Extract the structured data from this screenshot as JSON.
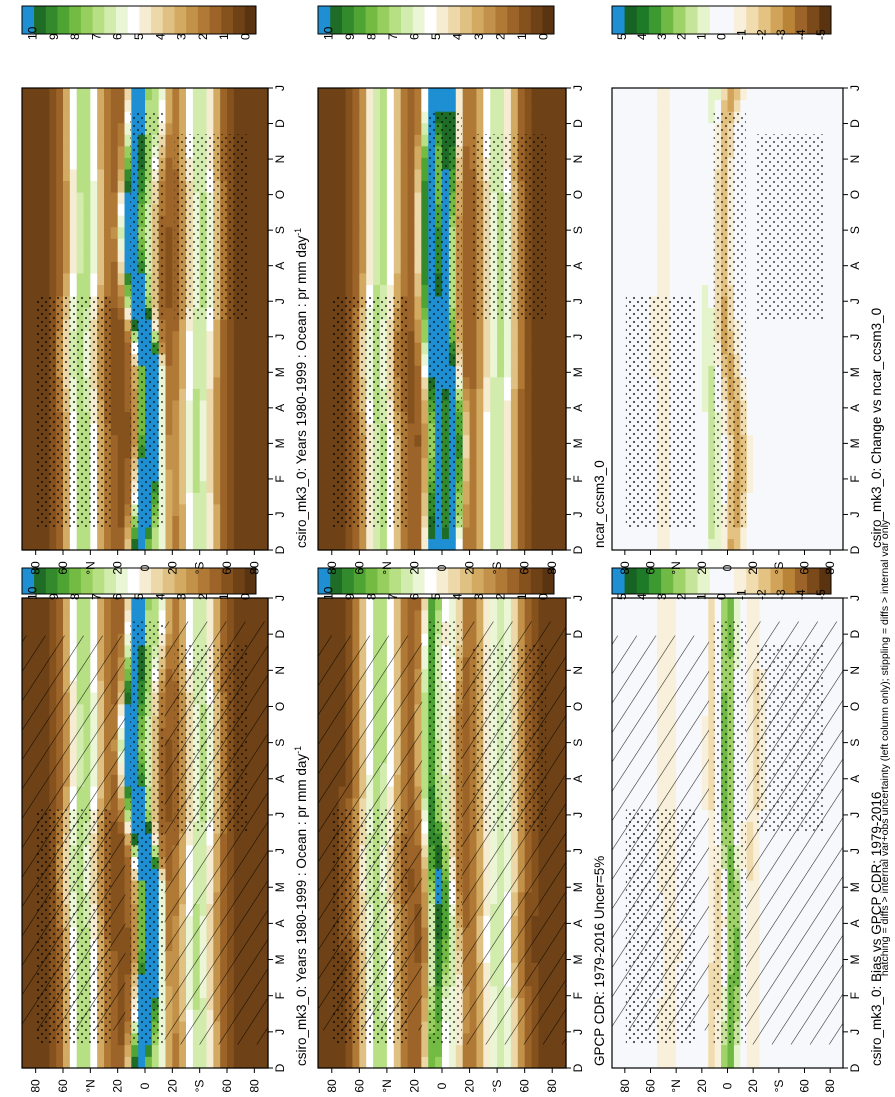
{
  "figure": {
    "footnote": "hatching = diffs > internal var+obs uncertainty (left column only); stippling = diffs > internal var only"
  },
  "palettes": {
    "abs": [
      "#5a3410",
      "#6e4216",
      "#85521e",
      "#9c6428",
      "#b07a36",
      "#c3924a",
      "#d3aa62",
      "#e0c184",
      "#ecd8a8",
      "#f6ecd2",
      "#ffffff",
      "#eaf6d5",
      "#d2ecae",
      "#b7df84",
      "#97cf5e",
      "#73bb42",
      "#4ea534",
      "#328a2c",
      "#1f6c26",
      "#1e8fd2"
    ],
    "diff": [
      "#5a3410",
      "#7a4a1a",
      "#9c6428",
      "#b98438",
      "#d1a45a",
      "#e3c282",
      "#f0dcae",
      "#f8f0da",
      "#f7f8fc",
      "#f7f8fc",
      "#e6f4cc",
      "#c6e59a",
      "#9fd268",
      "#6fb944",
      "#3d9a30",
      "#1f7a28",
      "#176324",
      "#1e8fd2"
    ]
  },
  "chart_data": [
    {
      "id": "p1",
      "type": "heatmap",
      "title": "csiro_mk3_0: Years 1980-1999 : Ocean : pr mm day",
      "title_sup": "-1",
      "x_ticks": [
        "D",
        "J",
        "F",
        "M",
        "A",
        "M",
        "J",
        "J",
        "A",
        "S",
        "O",
        "N",
        "D",
        "J"
      ],
      "y_ticks": [
        "80",
        "60",
        "°N",
        "20",
        "0",
        "20",
        "°S",
        "60",
        "80"
      ],
      "y_range": [
        -90,
        90
      ],
      "colorbar_labels": [
        "10",
        "9",
        "8",
        "7",
        "6",
        "5",
        "4",
        "3",
        "2",
        "1",
        "0"
      ],
      "palette": "abs",
      "overlay": "hatch+stipple",
      "z_range": [
        0,
        10
      ],
      "fields": [
        {
          "lat_c": [
            5,
            2,
            0,
            -3,
            -5,
            -6,
            0,
            7,
            10,
            12,
            10,
            8,
            6,
            5
          ],
          "width": 5,
          "amp": 9.2
        },
        {
          "lat_c": [
            -9,
            -9,
            -8,
            -6,
            -3,
            -1,
            0,
            0,
            0,
            0,
            -1,
            -4,
            -8,
            -9
          ],
          "width": 6,
          "amp": 5.0
        },
        {
          "lat_c": [
            -40,
            -40,
            -38,
            -38,
            -38,
            -40,
            -40,
            -42,
            -42,
            -42,
            -42,
            -40,
            -40,
            -40
          ],
          "width": 9,
          "amp": 5.4
        },
        {
          "lat_c": [
            45,
            45,
            45,
            45,
            46,
            48,
            48,
            46,
            44,
            44,
            44,
            45,
            45,
            45
          ],
          "width": 9,
          "amp": 5.8
        }
      ]
    },
    {
      "id": "p2",
      "type": "heatmap",
      "title": "csiro_mk3_0: Years 1980-1999 : Ocean : pr mm day",
      "title_sup": "-1",
      "x_ticks": [
        "D",
        "J",
        "F",
        "M",
        "A",
        "M",
        "J",
        "J",
        "A",
        "S",
        "O",
        "N",
        "D",
        "J"
      ],
      "y_ticks": [
        "80",
        "60",
        "°N",
        "20",
        "0",
        "20",
        "°S",
        "60",
        "80"
      ],
      "y_range": [
        -90,
        90
      ],
      "colorbar_labels": [
        "10",
        "9",
        "8",
        "7",
        "6",
        "5",
        "4",
        "3",
        "2",
        "1",
        "0"
      ],
      "palette": "abs",
      "overlay": "stipple",
      "z_range": [
        0,
        10
      ],
      "fields": [
        {
          "lat_c": [
            5,
            2,
            0,
            -3,
            -5,
            -6,
            0,
            7,
            10,
            12,
            10,
            8,
            6,
            5
          ],
          "width": 5,
          "amp": 9.2
        },
        {
          "lat_c": [
            -9,
            -9,
            -8,
            -6,
            -3,
            -1,
            0,
            0,
            0,
            0,
            -1,
            -4,
            -8,
            -9
          ],
          "width": 6,
          "amp": 5.0
        },
        {
          "lat_c": [
            -40,
            -40,
            -38,
            -38,
            -38,
            -40,
            -40,
            -42,
            -42,
            -42,
            -42,
            -40,
            -40,
            -40
          ],
          "width": 9,
          "amp": 5.4
        },
        {
          "lat_c": [
            45,
            45,
            45,
            45,
            46,
            48,
            48,
            46,
            44,
            44,
            44,
            45,
            45,
            45
          ],
          "width": 9,
          "amp": 5.8
        }
      ]
    },
    {
      "id": "p3",
      "type": "heatmap",
      "title": "GPCP CDR: 1979-2016 Uncer=5%",
      "title_sup": "",
      "x_ticks": [
        "D",
        "J",
        "F",
        "M",
        "A",
        "M",
        "J",
        "J",
        "A",
        "S",
        "O",
        "N",
        "D",
        "J"
      ],
      "y_ticks": [
        "80",
        "60",
        "°N",
        "20",
        "0",
        "20",
        "°S",
        "60",
        "80"
      ],
      "y_range": [
        -90,
        90
      ],
      "colorbar_labels": [
        "10",
        "9",
        "8",
        "7",
        "6",
        "5",
        "4",
        "3",
        "2",
        "1",
        "0"
      ],
      "palette": "abs",
      "overlay": "hatch+stipple",
      "z_range": [
        0,
        10
      ],
      "fields": [
        {
          "lat_c": [
            6,
            5,
            4,
            3,
            3,
            4,
            6,
            8,
            9,
            9,
            9,
            8,
            7,
            6
          ],
          "width": 5,
          "amp": 7.0
        },
        {
          "lat_c": [
            -8,
            -9,
            -9,
            -8,
            -6,
            -4,
            -3,
            -3,
            -3,
            -3,
            -4,
            -6,
            -8,
            -8
          ],
          "width": 5,
          "amp": 4.2
        },
        {
          "lat_c": [
            -42,
            -42,
            -42,
            -40,
            -40,
            -42,
            -42,
            -42,
            -42,
            -42,
            -42,
            -42,
            -42,
            -42
          ],
          "width": 10,
          "amp": 5.2
        },
        {
          "lat_c": [
            45,
            45,
            46,
            46,
            47,
            48,
            48,
            47,
            46,
            45,
            45,
            45,
            45,
            45
          ],
          "width": 10,
          "amp": 5.6
        }
      ]
    },
    {
      "id": "p4",
      "type": "heatmap",
      "title": "ncar_ccsm3_0",
      "title_sup": "",
      "x_ticks": [
        "D",
        "J",
        "F",
        "M",
        "A",
        "M",
        "J",
        "J",
        "A",
        "S",
        "O",
        "N",
        "D",
        "J"
      ],
      "y_ticks": [
        "80",
        "60",
        "°N",
        "20",
        "0",
        "20",
        "°S",
        "60",
        "80"
      ],
      "y_range": [
        -90,
        90
      ],
      "colorbar_labels": [
        "10",
        "9",
        "8",
        "7",
        "6",
        "5",
        "4",
        "3",
        "2",
        "1",
        "0"
      ],
      "palette": "abs",
      "overlay": "stipple",
      "z_range": [
        0,
        10
      ],
      "fields": [
        {
          "lat_c": [
            6,
            5,
            4,
            3,
            4,
            6,
            8,
            9,
            10,
            10,
            10,
            9,
            7,
            6
          ],
          "width": 5,
          "amp": 8.6
        },
        {
          "lat_c": [
            -6,
            -8,
            -9,
            -10,
            -9,
            -6,
            -4,
            -3,
            -3,
            -3,
            -4,
            -5,
            -6,
            -6
          ],
          "width": 5,
          "amp": 8.4
        },
        {
          "lat_c": [
            -40,
            -40,
            -40,
            -40,
            -40,
            -42,
            -42,
            -42,
            -42,
            -42,
            -42,
            -40,
            -40,
            -40
          ],
          "width": 9,
          "amp": 5.4
        },
        {
          "lat_c": [
            44,
            44,
            44,
            44,
            46,
            48,
            48,
            46,
            44,
            44,
            44,
            44,
            44,
            44
          ],
          "width": 9,
          "amp": 5.6
        }
      ]
    },
    {
      "id": "p5",
      "type": "heatmap",
      "title": "csiro_mk3_0: Bias vs GPCP CDR: 1979-2016",
      "title_sup": "",
      "x_ticks": [
        "D",
        "J",
        "F",
        "M",
        "A",
        "M",
        "J",
        "J",
        "A",
        "S",
        "O",
        "N",
        "D",
        "J"
      ],
      "y_ticks": [
        "80",
        "60",
        "°N",
        "20",
        "0",
        "20",
        "°S",
        "60",
        "80"
      ],
      "y_range": [
        -90,
        90
      ],
      "colorbar_labels": [
        "5",
        "4",
        "3",
        "2",
        "1",
        "0",
        "-1",
        "-2",
        "-3",
        "-4",
        "-5"
      ],
      "palette": "diff",
      "overlay": "hatch+stipple",
      "z_range": [
        -5,
        5
      ],
      "fields": [
        {
          "lat_c": [
            0,
            -2,
            -4,
            -6,
            -6,
            -4,
            0,
            2,
            2,
            2,
            2,
            1,
            0,
            0
          ],
          "width": 5,
          "amp": 2.8
        },
        {
          "lat_c": [
            10,
            10,
            10,
            8,
            6,
            6,
            8,
            10,
            12,
            12,
            10,
            10,
            10,
            10
          ],
          "width": 5,
          "amp": -1.6
        },
        {
          "lat_c": [
            -20,
            -20,
            -20,
            -18,
            -16,
            -16,
            -18,
            -20,
            -22,
            -22,
            -22,
            -20,
            -20,
            -20
          ],
          "width": 6,
          "amp": -1.2
        },
        {
          "lat_c": [
            48,
            48,
            46,
            44,
            44,
            46,
            48,
            48,
            46,
            46,
            46,
            48,
            48,
            48
          ],
          "width": 6,
          "amp": -1.0
        }
      ]
    },
    {
      "id": "p6",
      "type": "heatmap",
      "title": "csiro_mk3_0: Change vs ncar_ccsm3_0",
      "title_sup": "",
      "x_ticks": [
        "D",
        "J",
        "F",
        "M",
        "A",
        "M",
        "J",
        "J",
        "A",
        "S",
        "O",
        "N",
        "D",
        "J"
      ],
      "y_ticks": [
        "80",
        "60",
        "°N",
        "20",
        "0",
        "20",
        "°S",
        "60",
        "80"
      ],
      "y_range": [
        -90,
        90
      ],
      "colorbar_labels": [
        "5",
        "4",
        "3",
        "2",
        "1",
        "0",
        "-1",
        "-2",
        "-3",
        "-4",
        "-5"
      ],
      "palette": "diff",
      "overlay": "stipple",
      "z_range": [
        -5,
        5
      ],
      "fields": [
        {
          "lat_c": [
            -4,
            -6,
            -8,
            -8,
            -6,
            -2,
            2,
            4,
            6,
            6,
            6,
            5,
            3,
            -4
          ],
          "width": 6,
          "amp": -2.4
        },
        {
          "lat_c": [
            10,
            10,
            10,
            12,
            12,
            14,
            14,
            14,
            12,
            12,
            12,
            10,
            10,
            10
          ],
          "width": 4,
          "amp": 1.4
        },
        {
          "lat_c": [
            50,
            50,
            50,
            50,
            50,
            52,
            52,
            52,
            50,
            50,
            50,
            50,
            50,
            50
          ],
          "width": 6,
          "amp": -0.9
        }
      ]
    }
  ]
}
